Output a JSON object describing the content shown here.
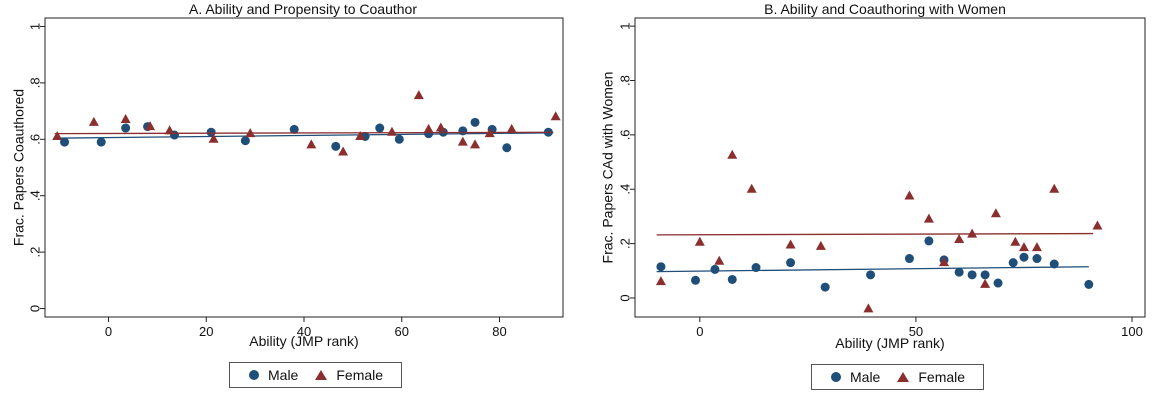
{
  "chart_data": [
    {
      "type": "scatter",
      "title": "A. Ability and Propensity to Coauthor",
      "xlabel": "Ability (JMP rank)",
      "ylabel": "Frac. Papers Coauthored",
      "xlim": [
        -13,
        93
      ],
      "ylim": [
        -0.03,
        1.03
      ],
      "xticks": [
        0,
        20,
        40,
        60,
        80
      ],
      "xtick_labels": [
        "0",
        "20",
        "40",
        "60",
        "80"
      ],
      "yticks": [
        0,
        0.2,
        0.4,
        0.6,
        0.8,
        1
      ],
      "ytick_labels": [
        "0",
        ".2",
        ".4",
        ".6",
        ".8",
        "1"
      ],
      "grid": false,
      "legend_position": "bottom-center",
      "series": [
        {
          "name": "Male",
          "marker": "circle",
          "color": "#1f4e79",
          "points": [
            [
              -9,
              0.59
            ],
            [
              -1.5,
              0.59
            ],
            [
              3.5,
              0.64
            ],
            [
              8,
              0.645
            ],
            [
              13.5,
              0.615
            ],
            [
              21,
              0.625
            ],
            [
              28,
              0.595
            ],
            [
              38,
              0.635
            ],
            [
              46.5,
              0.575
            ],
            [
              52.5,
              0.61
            ],
            [
              55.5,
              0.64
            ],
            [
              59.5,
              0.6
            ],
            [
              65.5,
              0.62
            ],
            [
              68.5,
              0.625
            ],
            [
              72.5,
              0.63
            ],
            [
              75,
              0.66
            ],
            [
              78.5,
              0.635
            ],
            [
              81.5,
              0.57
            ],
            [
              90,
              0.625
            ]
          ],
          "fit": [
            [
              -11,
              0.604
            ],
            [
              91,
              0.623
            ]
          ]
        },
        {
          "name": "Female",
          "marker": "triangle",
          "color": "#8b2e2e",
          "points": [
            [
              -10.5,
              0.61
            ],
            [
              -3,
              0.66
            ],
            [
              3.5,
              0.67
            ],
            [
              8.5,
              0.645
            ],
            [
              12.5,
              0.63
            ],
            [
              21.5,
              0.6
            ],
            [
              29,
              0.62
            ],
            [
              41.5,
              0.58
            ],
            [
              48,
              0.555
            ],
            [
              51.5,
              0.61
            ],
            [
              58,
              0.625
            ],
            [
              63.5,
              0.755
            ],
            [
              65.5,
              0.635
            ],
            [
              68,
              0.64
            ],
            [
              72.5,
              0.59
            ],
            [
              75,
              0.58
            ],
            [
              78,
              0.62
            ],
            [
              82.5,
              0.635
            ],
            [
              91.5,
              0.68
            ]
          ],
          "fit": [
            [
              -11,
              0.62
            ],
            [
              91,
              0.625
            ]
          ]
        }
      ]
    },
    {
      "type": "scatter",
      "title": "B. Ability and Coauthoring with Women",
      "xlabel": "Ability (JMP rank)",
      "ylabel": "Frac. Papers CAd with Women",
      "xlim": [
        -15,
        103
      ],
      "ylim": [
        -0.07,
        1.03
      ],
      "xticks": [
        0,
        50,
        100
      ],
      "xtick_labels": [
        "0",
        "50",
        "100"
      ],
      "yticks": [
        0,
        0.2,
        0.4,
        0.6,
        0.8,
        1
      ],
      "ytick_labels": [
        "0",
        ".2",
        ".4",
        ".6",
        ".8",
        "1"
      ],
      "grid": false,
      "legend_position": "bottom-center",
      "series": [
        {
          "name": "Male",
          "marker": "circle",
          "color": "#1f4e79",
          "points": [
            [
              -9,
              0.115
            ],
            [
              -1,
              0.065
            ],
            [
              3.5,
              0.105
            ],
            [
              7.5,
              0.068
            ],
            [
              13,
              0.112
            ],
            [
              21,
              0.13
            ],
            [
              29,
              0.04
            ],
            [
              39.5,
              0.085
            ],
            [
              48.5,
              0.145
            ],
            [
              53,
              0.21
            ],
            [
              56.5,
              0.14
            ],
            [
              60,
              0.095
            ],
            [
              63,
              0.085
            ],
            [
              66,
              0.085
            ],
            [
              69,
              0.055
            ],
            [
              72.5,
              0.13
            ],
            [
              75,
              0.15
            ],
            [
              78,
              0.145
            ],
            [
              82,
              0.125
            ],
            [
              90,
              0.05
            ]
          ],
          "fit": [
            [
              -10,
              0.097
            ],
            [
              90,
              0.115
            ]
          ]
        },
        {
          "name": "Female",
          "marker": "triangle",
          "color": "#8b2e2e",
          "points": [
            [
              -9,
              0.06
            ],
            [
              0,
              0.205
            ],
            [
              4.5,
              0.135
            ],
            [
              7.5,
              0.525
            ],
            [
              12,
              0.4
            ],
            [
              21,
              0.195
            ],
            [
              28,
              0.19
            ],
            [
              39,
              -0.04
            ],
            [
              48.5,
              0.375
            ],
            [
              53,
              0.29
            ],
            [
              56.5,
              0.13
            ],
            [
              60,
              0.215
            ],
            [
              63,
              0.235
            ],
            [
              66,
              0.05
            ],
            [
              68.5,
              0.31
            ],
            [
              73,
              0.205
            ],
            [
              75,
              0.185
            ],
            [
              78,
              0.185
            ],
            [
              82,
              0.4
            ],
            [
              92,
              0.265
            ]
          ],
          "fit": [
            [
              -10,
              0.232
            ],
            [
              91,
              0.237
            ]
          ]
        }
      ]
    }
  ],
  "legend": {
    "male_label": "Male",
    "female_label": "Female"
  }
}
